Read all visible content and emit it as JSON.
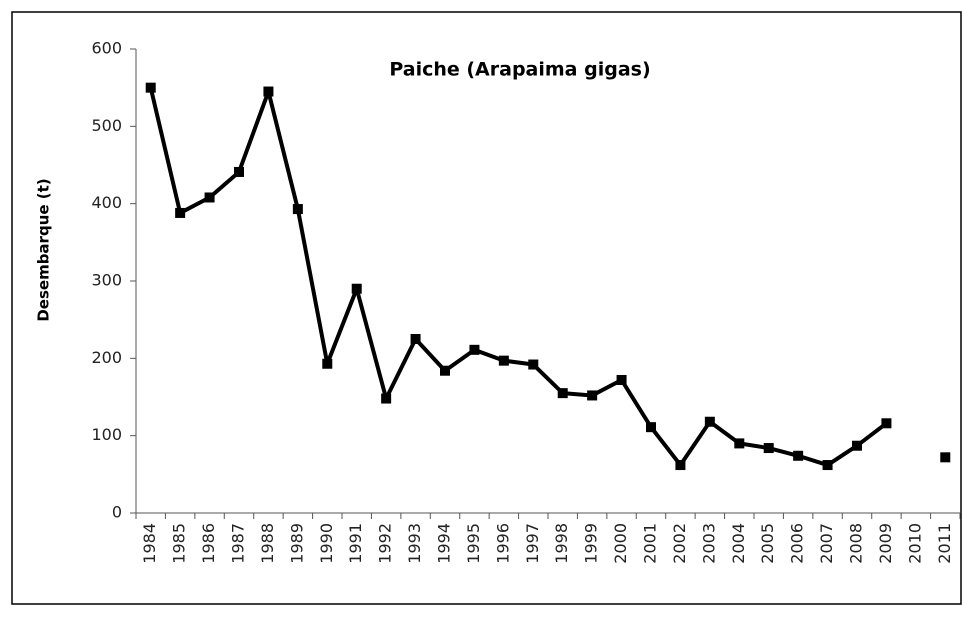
{
  "chart_data": {
    "type": "line",
    "title": "Paiche (Arapaima gigas)",
    "y_label": "Desembarque (t)",
    "categories": [
      "1984",
      "1985",
      "1986",
      "1987",
      "1988",
      "1989",
      "1990",
      "1991",
      "1992",
      "1993",
      "1994",
      "1995",
      "1996",
      "1997",
      "1998",
      "1999",
      "2000",
      "2001",
      "2002",
      "2003",
      "2004",
      "2005",
      "2006",
      "2007",
      "2008",
      "2009",
      "2010",
      "2011"
    ],
    "series": [
      {
        "name": "Paiche",
        "color": "#000000",
        "values": [
          550,
          388,
          408,
          441,
          545,
          393,
          193,
          290,
          148,
          225,
          184,
          211,
          197,
          192,
          155,
          152,
          172,
          111,
          62,
          118,
          90,
          84,
          74,
          62,
          87,
          116,
          null,
          72
        ]
      }
    ],
    "ylim": [
      0,
      600
    ],
    "yticks": [
      0,
      100,
      200,
      300,
      400,
      500,
      600
    ],
    "grid": false
  }
}
